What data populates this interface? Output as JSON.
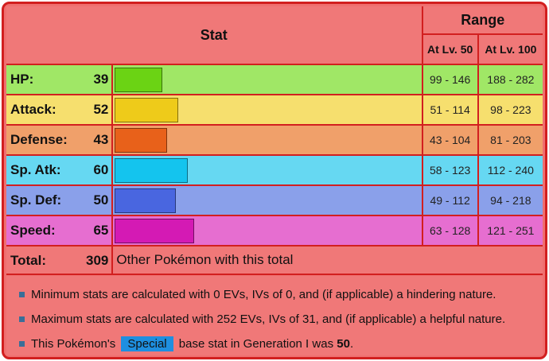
{
  "header": {
    "stat_title": "Stat",
    "range_title": "Range",
    "lv50_label": "At Lv. 50",
    "lv100_label": "At Lv. 100"
  },
  "stats": [
    {
      "label": "HP:",
      "value": "39",
      "base": 39,
      "range50": "99 - 146",
      "range100": "188 - 282",
      "row_color": "#a0e766",
      "bar_color": "#6bd314"
    },
    {
      "label": "Attack:",
      "value": "52",
      "base": 52,
      "range50": "51 - 114",
      "range100": "98 - 223",
      "row_color": "#f6df6e",
      "bar_color": "#eecb1a"
    },
    {
      "label": "Defense:",
      "value": "43",
      "base": 43,
      "range50": "43 - 104",
      "range100": "81 - 203",
      "row_color": "#f0a06a",
      "bar_color": "#e8611a"
    },
    {
      "label": "Sp. Atk:",
      "value": "60",
      "base": 60,
      "range50": "58 - 123",
      "range100": "112 - 240",
      "row_color": "#66d8f2",
      "bar_color": "#14c4ee"
    },
    {
      "label": "Sp. Def:",
      "value": "50",
      "base": 50,
      "range50": "49 - 112",
      "range100": "94 - 218",
      "row_color": "#8aa0ea",
      "bar_color": "#4966e0"
    },
    {
      "label": "Speed:",
      "value": "65",
      "base": 65,
      "range50": "63 - 128",
      "range100": "121 - 251",
      "row_color": "#e66ed0",
      "bar_color": "#d41ab4"
    }
  ],
  "total": {
    "label": "Total:",
    "value": "309",
    "other_text": "Other Pokémon with this total"
  },
  "notes": {
    "min_text": "Minimum stats are calculated with 0 EVs, IVs of 0, and (if applicable) a hindering nature.",
    "max_text": "Maximum stats are calculated with 252 EVs, IVs of 31, and (if applicable) a helpful nature.",
    "special_prefix": "This Pokémon's",
    "special_badge": "Special",
    "special_middle": "base stat in Generation I was",
    "special_value": "50",
    "special_suffix": "."
  },
  "colors": {
    "frame": "#d21f1f",
    "background": "#ef7070",
    "special_badge": "#1e8fe0"
  }
}
